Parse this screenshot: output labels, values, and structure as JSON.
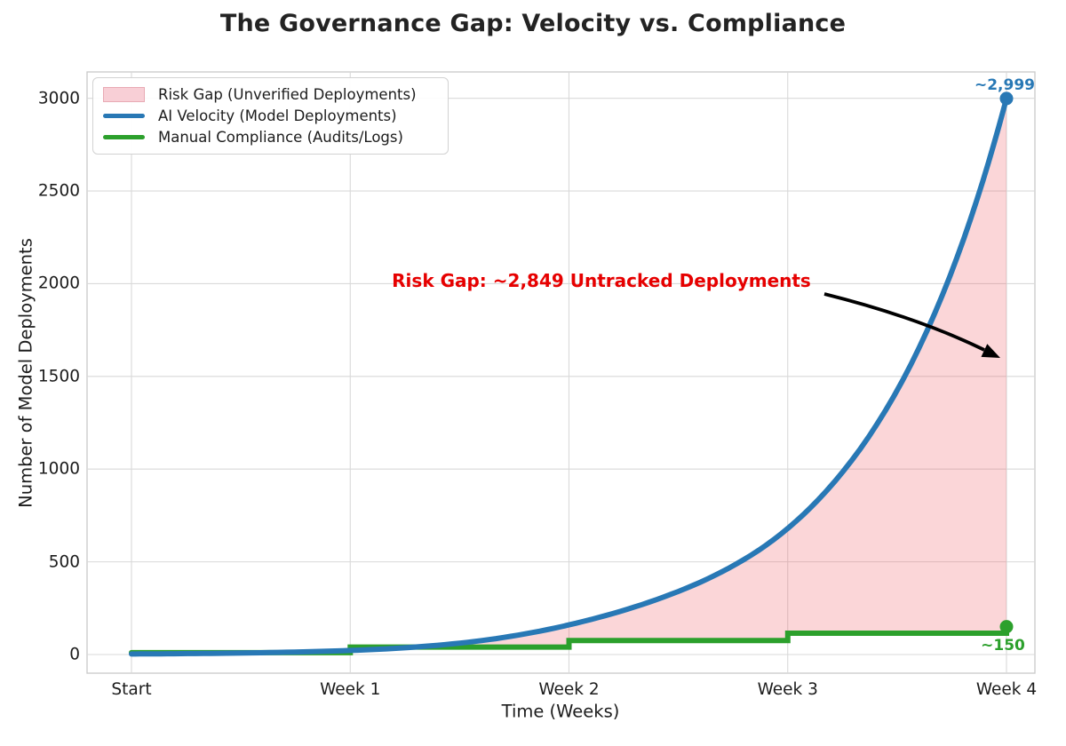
{
  "title": "The Governance Gap: Velocity vs. Compliance",
  "axes": {
    "xlabel": "Time (Weeks)",
    "ylabel": "Number of Model Deployments",
    "x_tick_labels": [
      "Start",
      "Week 1",
      "Week 2",
      "Week 3",
      "Week 4"
    ],
    "y_tick_labels": [
      "0",
      "500",
      "1000",
      "1500",
      "2000",
      "2500",
      "3000"
    ]
  },
  "legend": {
    "items": [
      {
        "label": "Risk Gap (Unverified Deployments)",
        "swatch": "patch",
        "color": "#f8cfd6",
        "border_color": "#e8aab4"
      },
      {
        "label": "AI Velocity (Model Deployments)",
        "swatch": "line",
        "color": "#2878b5"
      },
      {
        "label": "Manual Compliance (Audits/Logs)",
        "swatch": "line",
        "color": "#2ca02c"
      }
    ]
  },
  "annotations": {
    "risk_gap_label": "Risk Gap: ~2,849 Untracked Deployments",
    "risk_gap_color": "#e60000",
    "ai_endpoint_label": "~2,999",
    "compliance_endpoint_label": "~150"
  },
  "chart_data": {
    "type": "line",
    "title": "The Governance Gap: Velocity vs. Compliance",
    "xlabel": "Time (Weeks)",
    "ylabel": "Number of Model Deployments",
    "categories": [
      "Start",
      "Week 1",
      "Week 2",
      "Week 3",
      "Week 4"
    ],
    "x": [
      0,
      1,
      2,
      3,
      4
    ],
    "series": [
      {
        "name": "AI Velocity (Model Deployments)",
        "style": "smooth_curve",
        "color": "#2878b5",
        "linewidth": 6,
        "values": [
          3,
          22,
          160,
          680,
          2999
        ],
        "end_marker": true,
        "endpoint_label": "~2,999"
      },
      {
        "name": "Manual Compliance (Audits/Logs)",
        "style": "step_post",
        "color": "#2ca02c",
        "linewidth": 6,
        "values": [
          10,
          40,
          75,
          115,
          150
        ],
        "end_marker": true,
        "endpoint_label": "~150"
      }
    ],
    "fill_between": {
      "name": "Risk Gap (Unverified Deployments)",
      "between": [
        "Manual Compliance (Audits/Logs)",
        "AI Velocity (Model Deployments)"
      ],
      "color": "rgba(240,82,92,0.24)",
      "gap_value": 2849
    },
    "y_ticks": [
      0,
      500,
      1000,
      1500,
      2000,
      2500,
      3000
    ],
    "ylim": [
      -100,
      3140
    ],
    "grid": true,
    "grid_color": "#d9d9d9",
    "spine_color": "#c9c9c9",
    "legend_position": "upper left",
    "annotation": {
      "text": "Risk Gap: ~2,849 Untracked Deployments",
      "color": "#e60000",
      "arrow_color": "#000000"
    }
  }
}
